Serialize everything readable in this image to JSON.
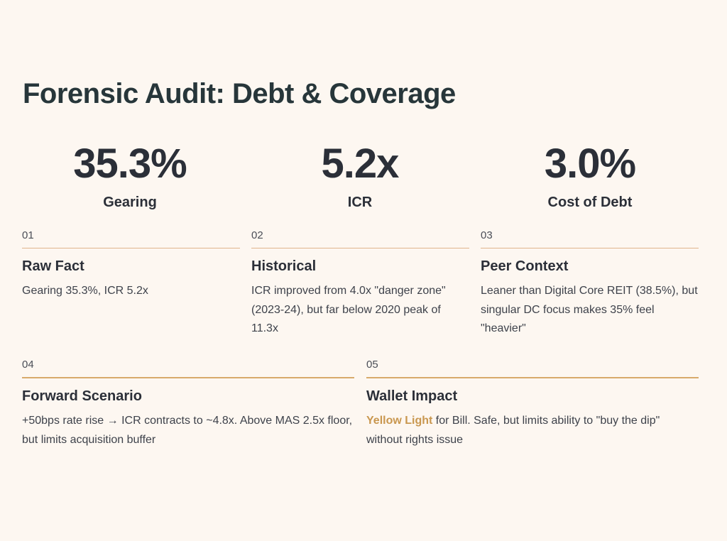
{
  "title": "Forensic Audit: Debt & Coverage",
  "metrics": [
    {
      "value": "35.3%",
      "label": "Gearing"
    },
    {
      "value": "5.2x",
      "label": "ICR"
    },
    {
      "value": "3.0%",
      "label": "Cost of Debt"
    }
  ],
  "cards": [
    {
      "num": "01",
      "head": "Raw Fact",
      "body": "Gearing 35.3%, ICR 5.2x"
    },
    {
      "num": "02",
      "head": "Historical",
      "body": "ICR improved from 4.0x \"danger zone\" (2023-24), but far below 2020 peak of 11.3x"
    },
    {
      "num": "03",
      "head": "Peer Context",
      "body": "Leaner than Digital Core REIT (38.5%), but singular DC focus makes 35% feel \"heavier\""
    },
    {
      "num": "04",
      "head": "Forward Scenario",
      "body": "+50bps rate rise → ICR contracts to ~4.8x. Above MAS 2.5x floor, but limits acquisition buffer"
    },
    {
      "num": "05",
      "head": "Wallet Impact",
      "highlight": "Yellow Light",
      "body": " for Bill. Safe, but limits ability to \"buy the dip\" without rights issue"
    }
  ],
  "colors": {
    "background": "#fdf7f1",
    "accent": "#d8aa6c",
    "highlight": "#c9974f",
    "text": "#2b2f38"
  }
}
